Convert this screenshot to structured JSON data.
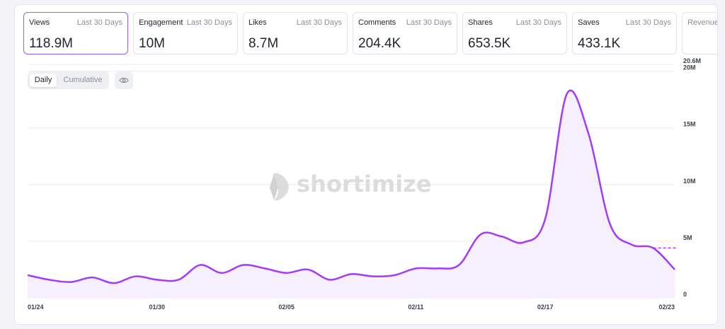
{
  "metrics": [
    {
      "name": "Views",
      "period": "Last 30 Days",
      "value": "118.9M"
    },
    {
      "name": "Engagement",
      "period": "Last 30 Days",
      "value": "10M"
    },
    {
      "name": "Likes",
      "period": "Last 30 Days",
      "value": "8.7M"
    },
    {
      "name": "Comments",
      "period": "Last 30 Days",
      "value": "204.4K"
    },
    {
      "name": "Shares",
      "period": "Last 30 Days",
      "value": "653.5K"
    },
    {
      "name": "Saves",
      "period": "Last 30 Days",
      "value": "433.1K"
    },
    {
      "name": "Revenue",
      "period": "",
      "value": ""
    }
  ],
  "toggle": {
    "daily": "Daily",
    "cumulative": "Cumulative"
  },
  "watermark": "shortimize",
  "colors": {
    "accent": "#9a5cf0",
    "line": "#a43cf2",
    "fill": "#f6f0fe",
    "grid": "#ececf0"
  },
  "icons": {
    "view_toggle": "eye-icon",
    "logo": "shortimize-logo-icon"
  },
  "chart_data": {
    "type": "area",
    "x": [
      "01/24",
      "01/25",
      "01/26",
      "01/27",
      "01/28",
      "01/29",
      "01/30",
      "01/31",
      "02/01",
      "02/02",
      "02/03",
      "02/04",
      "02/05",
      "02/06",
      "02/07",
      "02/08",
      "02/09",
      "02/10",
      "02/11",
      "02/12",
      "02/13",
      "02/14",
      "02/15",
      "02/16",
      "02/17",
      "02/18",
      "02/19",
      "02/20",
      "02/21",
      "02/22",
      "02/23"
    ],
    "y": [
      2.0,
      1.6,
      1.4,
      1.8,
      1.3,
      1.9,
      1.6,
      1.6,
      2.9,
      2.2,
      2.9,
      2.6,
      2.2,
      2.5,
      1.6,
      2.1,
      1.9,
      2.0,
      2.6,
      2.6,
      2.9,
      5.6,
      5.4,
      4.9,
      7.0,
      18.0,
      14.5,
      6.5,
      4.7,
      4.4,
      2.5
    ],
    "x_ticks": [
      "01/24",
      "01/30",
      "02/05",
      "02/11",
      "02/17",
      "02/23"
    ],
    "y_ticks": [
      "0",
      "5M",
      "10M",
      "15M",
      "20M"
    ],
    "y_max_label": "20.6M",
    "ylim": [
      0,
      20.6
    ],
    "y_unit": "M",
    "grid": true,
    "legend": "none"
  }
}
